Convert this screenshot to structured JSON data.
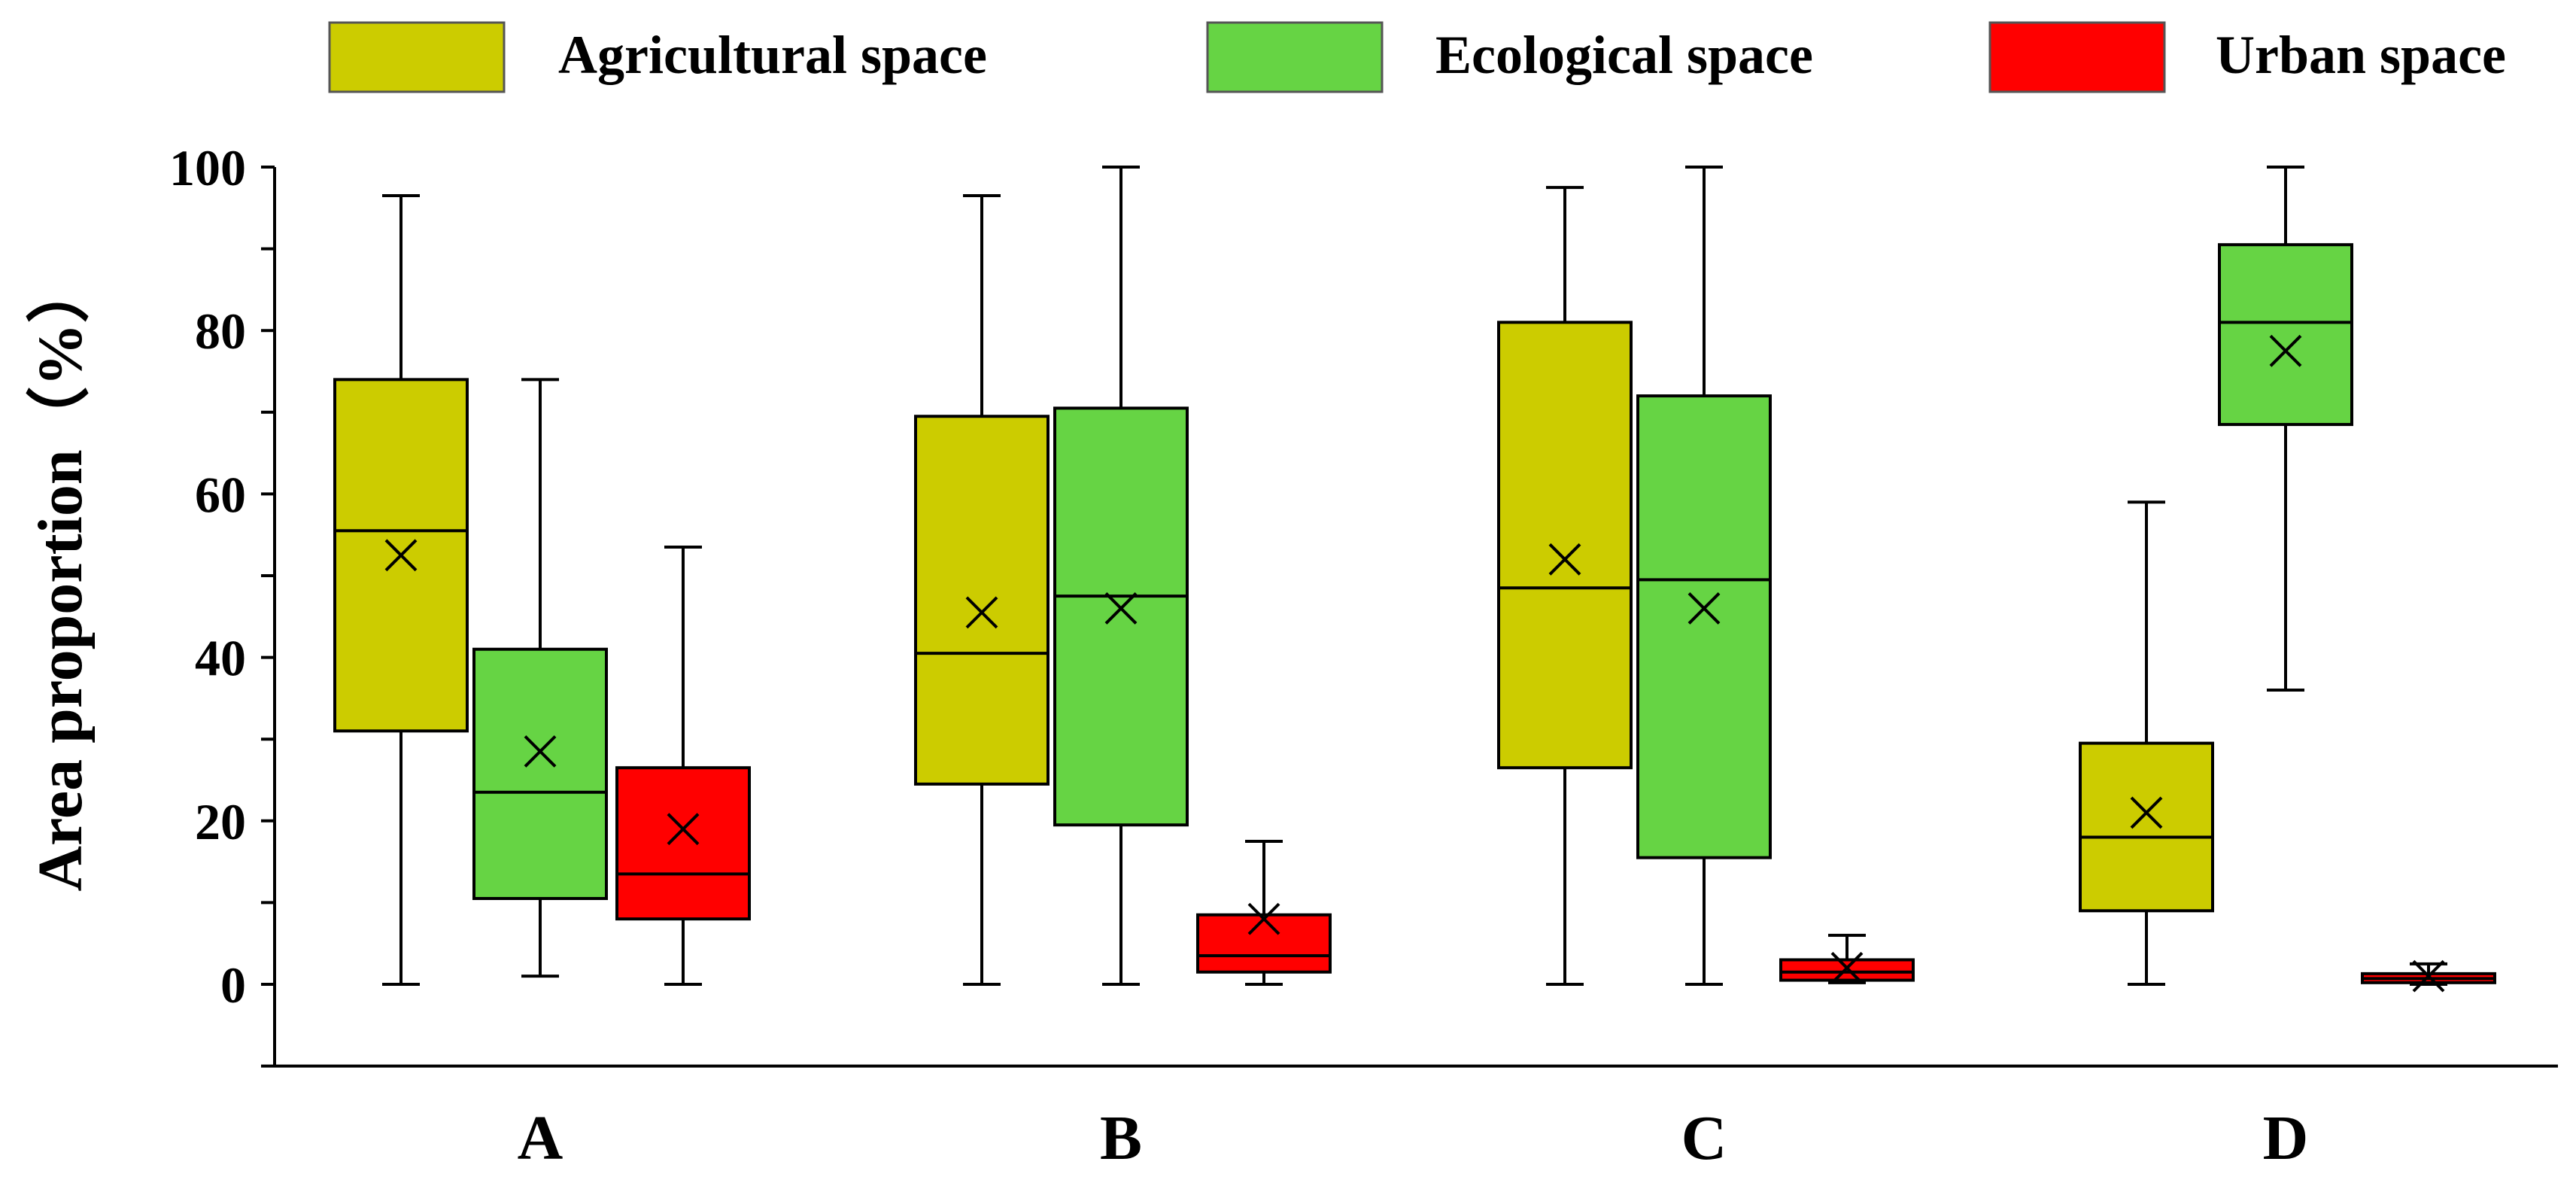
{
  "chart_data": {
    "type": "box",
    "title": "",
    "xlabel": "",
    "ylabel": "Area proportion（%）",
    "ylim": [
      -10,
      100
    ],
    "yticks": [
      0,
      20,
      40,
      60,
      80,
      100
    ],
    "categories": [
      "A",
      "B",
      "C",
      "D"
    ],
    "legend_position": "top",
    "grid": false,
    "series": [
      {
        "name": "Agricultural space",
        "color": "#cccc00",
        "boxes": [
          {
            "min": 0,
            "q1": 31,
            "median": 55.5,
            "q3": 74,
            "max": 96.5,
            "mean": 52.5
          },
          {
            "min": 0,
            "q1": 24.5,
            "median": 40.5,
            "q3": 69.5,
            "max": 96.5,
            "mean": 45.5
          },
          {
            "min": 0,
            "q1": 26.5,
            "median": 48.5,
            "q3": 81,
            "max": 97.5,
            "mean": 52
          },
          {
            "min": 0,
            "q1": 9,
            "median": 18,
            "q3": 29.5,
            "max": 59,
            "mean": 21
          }
        ]
      },
      {
        "name": "Ecological space",
        "color": "#66d444",
        "boxes": [
          {
            "min": 1,
            "q1": 10.5,
            "median": 23.5,
            "q3": 41,
            "max": 74,
            "mean": 28.5
          },
          {
            "min": 0,
            "q1": 19.5,
            "median": 47.5,
            "q3": 70.5,
            "max": 100,
            "mean": 46
          },
          {
            "min": 0,
            "q1": 15.5,
            "median": 49.5,
            "q3": 72,
            "max": 100,
            "mean": 46
          },
          {
            "min": 36,
            "q1": 68.5,
            "median": 81,
            "q3": 90.5,
            "max": 100,
            "mean": 77.5
          }
        ]
      },
      {
        "name": "Urban space",
        "color": "#ff0000",
        "boxes": [
          {
            "min": 0,
            "q1": 8,
            "median": 13.5,
            "q3": 26.5,
            "max": 53.5,
            "mean": 19
          },
          {
            "min": 0,
            "q1": 1.5,
            "median": 3.5,
            "q3": 8.5,
            "max": 17.5,
            "mean": 8
          },
          {
            "min": 0.2,
            "q1": 0.5,
            "median": 1.5,
            "q3": 3,
            "max": 6,
            "mean": 2
          },
          {
            "min": 0,
            "q1": 0.2,
            "median": 0.7,
            "q3": 1.3,
            "max": 2.5,
            "mean": 1
          }
        ]
      }
    ]
  }
}
